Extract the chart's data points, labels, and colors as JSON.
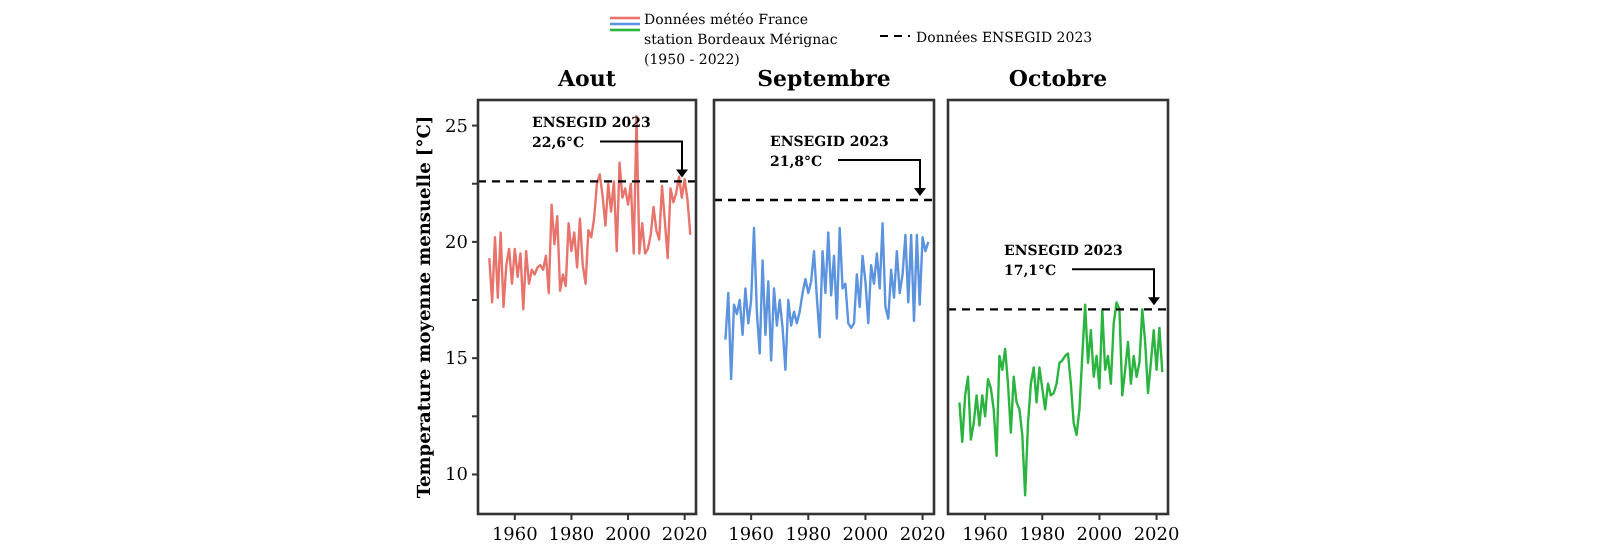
{
  "chart_data": [
    {
      "type": "line",
      "title": "Aout",
      "ylabel": "Temperature moyenne mensuelle [°C]",
      "xlim": [
        1947,
        2024
      ],
      "xticks": [
        1960,
        1980,
        2000,
        2020
      ],
      "ylim": [
        8.3,
        26.1
      ],
      "yticks": [
        10,
        {
          "value": 12.5,
          "label": null
        },
        15,
        {
          "value": 17.5,
          "label": null
        },
        20,
        {
          "value": 22.5,
          "label": null
        },
        25
      ],
      "legend": "top",
      "annotations": [
        "Données ENSEGID 2023"
      ],
      "ref_lines": [
        {
          "axis": "y",
          "value": 22.6,
          "label": "ENSEGID 2023\n22,6°C",
          "color": "#000000",
          "line_style": "dashed"
        }
      ],
      "x": [
        1951,
        1952,
        1953,
        1954,
        1955,
        1956,
        1957,
        1958,
        1959,
        1960,
        1961,
        1962,
        1963,
        1964,
        1965,
        1966,
        1967,
        1968,
        1969,
        1970,
        1971,
        1972,
        1973,
        1974,
        1975,
        1976,
        1977,
        1978,
        1979,
        1980,
        1981,
        1982,
        1983,
        1984,
        1985,
        1986,
        1987,
        1988,
        1989,
        1990,
        1991,
        1992,
        1993,
        1994,
        1995,
        1996,
        1997,
        1998,
        1999,
        2000,
        2001,
        2002,
        2003,
        2004,
        2005,
        2006,
        2007,
        2008,
        2009,
        2010,
        2011,
        2012,
        2013,
        2014,
        2015,
        2016,
        2017,
        2018,
        2019,
        2020,
        2021,
        2022
      ],
      "series": [
        {
          "name": "Données météo France\nstation Bordeaux Mérignac\n(1950 - 2022)",
          "color": "#e8736b",
          "values": [
            19.3,
            17.4,
            20.2,
            17.6,
            20.4,
            17.2,
            19.0,
            19.7,
            18.2,
            19.7,
            18.5,
            19.5,
            17.1,
            19.6,
            18.2,
            18.8,
            18.6,
            18.9,
            19.0,
            18.8,
            19.4,
            17.8,
            21.6,
            19.9,
            21.1,
            17.9,
            18.6,
            18.1,
            20.8,
            19.6,
            20.4,
            18.9,
            21.0,
            19.0,
            18.2,
            20.5,
            20.2,
            21.0,
            22.5,
            22.9,
            22.0,
            20.7,
            22.5,
            21.3,
            22.6,
            19.6,
            23.4,
            21.9,
            22.3,
            21.6,
            22.5,
            19.5,
            25.4,
            19.5,
            20.8,
            19.5,
            19.7,
            20.3,
            21.5,
            20.5,
            20.1,
            22.4,
            20.9,
            19.3,
            22.3,
            21.7,
            22.1,
            22.8,
            21.9,
            22.7,
            21.8,
            20.3
          ]
        }
      ]
    },
    {
      "type": "line",
      "title": "Septembre",
      "xlim": [
        1947,
        2024
      ],
      "xticks": [
        1960,
        1980,
        2000,
        2020
      ],
      "ylim": [
        8.3,
        26.1
      ],
      "tick_labels": "x",
      "ref_lines": [
        {
          "axis": "y",
          "value": 21.8,
          "label": "ENSEGID 2023\n21,8°C",
          "color": "#000000",
          "line_style": "dashed"
        }
      ],
      "x": [
        1951,
        1952,
        1953,
        1954,
        1955,
        1956,
        1957,
        1958,
        1959,
        1960,
        1961,
        1962,
        1963,
        1964,
        1965,
        1966,
        1967,
        1968,
        1969,
        1970,
        1971,
        1972,
        1973,
        1974,
        1975,
        1976,
        1977,
        1978,
        1979,
        1980,
        1981,
        1982,
        1983,
        1984,
        1985,
        1986,
        1987,
        1988,
        1989,
        1990,
        1991,
        1992,
        1993,
        1994,
        1995,
        1996,
        1997,
        1998,
        1999,
        2000,
        2001,
        2002,
        2003,
        2004,
        2005,
        2006,
        2007,
        2008,
        2009,
        2010,
        2011,
        2012,
        2013,
        2014,
        2015,
        2016,
        2017,
        2018,
        2019,
        2020,
        2021,
        2022
      ],
      "series": [
        {
          "color": "#5b93df",
          "values": [
            15.8,
            17.8,
            14.1,
            17.3,
            16.9,
            17.5,
            16.0,
            18.0,
            16.5,
            17.5,
            20.6,
            17.0,
            15.2,
            19.2,
            16.0,
            18.3,
            14.9,
            18.0,
            16.4,
            17.5,
            16.3,
            14.5,
            17.5,
            16.4,
            17.0,
            16.5,
            17.0,
            17.8,
            18.4,
            17.8,
            18.3,
            19.6,
            17.6,
            15.9,
            19.6,
            17.8,
            20.4,
            17.7,
            19.4,
            16.7,
            20.6,
            18.0,
            18.2,
            16.5,
            16.3,
            16.5,
            18.6,
            17.2,
            19.4,
            18.3,
            16.5,
            19.0,
            18.2,
            19.5,
            18.0,
            20.8,
            17.2,
            16.7,
            18.8,
            17.6,
            19.6,
            17.8,
            18.6,
            20.3,
            17.4,
            20.3,
            16.6,
            20.3,
            17.3,
            20.2,
            19.6,
            20.0
          ]
        }
      ]
    },
    {
      "type": "line",
      "title": "Octobre",
      "xlim": [
        1947,
        2024
      ],
      "xticks": [
        1960,
        1980,
        2000,
        2020
      ],
      "ylim": [
        8.3,
        26.1
      ],
      "tick_labels": "x",
      "ref_lines": [
        {
          "axis": "y",
          "value": 17.1,
          "label": "ENSEGID 2023\n17,1°C",
          "color": "#000000",
          "line_style": "dashed"
        }
      ],
      "x": [
        1951,
        1952,
        1953,
        1954,
        1955,
        1956,
        1957,
        1958,
        1959,
        1960,
        1961,
        1962,
        1963,
        1964,
        1965,
        1966,
        1967,
        1968,
        1969,
        1970,
        1971,
        1972,
        1973,
        1974,
        1975,
        1976,
        1977,
        1978,
        1979,
        1980,
        1981,
        1982,
        1983,
        1984,
        1985,
        1986,
        1987,
        1988,
        1989,
        1990,
        1991,
        1992,
        1993,
        1994,
        1995,
        1996,
        1997,
        1998,
        1999,
        2000,
        2001,
        2002,
        2003,
        2004,
        2005,
        2006,
        2007,
        2008,
        2009,
        2010,
        2011,
        2012,
        2013,
        2014,
        2015,
        2016,
        2017,
        2018,
        2019,
        2020,
        2021,
        2022
      ],
      "series": [
        {
          "color": "#2bb540",
          "values": [
            13.1,
            11.4,
            13.4,
            14.2,
            11.5,
            12.2,
            13.4,
            12.1,
            13.4,
            12.5,
            14.1,
            13.7,
            12.8,
            10.8,
            15.1,
            14.5,
            15.4,
            13.9,
            11.8,
            14.2,
            13.1,
            12.8,
            11.7,
            9.1,
            12.2,
            13.9,
            14.6,
            13.1,
            14.6,
            13.7,
            12.8,
            13.9,
            13.4,
            13.5,
            13.9,
            14.8,
            14.9,
            15.1,
            15.2,
            13.9,
            12.2,
            11.7,
            12.8,
            15.1,
            17.3,
            14.8,
            16.2,
            14.2,
            15.1,
            13.7,
            17.1,
            14.5,
            15.1,
            13.9,
            16.5,
            17.4,
            17.1,
            13.4,
            14.5,
            15.7,
            13.9,
            15.1,
            14.2,
            14.8,
            17.1,
            15.7,
            13.5,
            14.8,
            16.2,
            14.5,
            16.3,
            14.4
          ]
        }
      ]
    }
  ]
}
